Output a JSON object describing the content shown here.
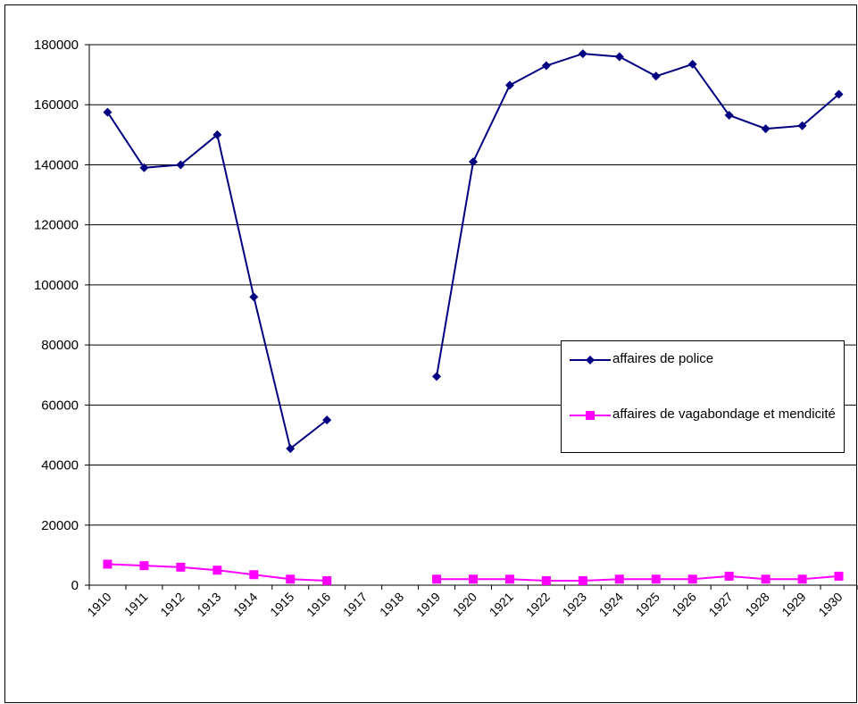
{
  "chart_data": {
    "type": "line",
    "categories": [
      "1910",
      "1911",
      "1912",
      "1913",
      "1914",
      "1915",
      "1916",
      "1917",
      "1918",
      "1919",
      "1920",
      "1921",
      "1922",
      "1923",
      "1924",
      "1925",
      "1926",
      "1927",
      "1928",
      "1929",
      "1930"
    ],
    "series": [
      {
        "name": "affaires de police",
        "color": "#000080",
        "marker": "diamond",
        "values": [
          157500,
          139000,
          140000,
          150000,
          96000,
          45500,
          55000,
          null,
          null,
          69500,
          141000,
          166500,
          173000,
          177000,
          176000,
          169500,
          173500,
          156500,
          152000,
          153000,
          163500
        ]
      },
      {
        "name": "affaires de vagabondage et mendicité",
        "color": "#ff00ff",
        "marker": "square",
        "values": [
          7000,
          6500,
          6000,
          5000,
          3500,
          2000,
          1500,
          null,
          null,
          2000,
          2000,
          2000,
          1500,
          1500,
          2000,
          2000,
          2000,
          3000,
          2000,
          2000,
          3000
        ]
      }
    ],
    "ylim": [
      0,
      180000
    ],
    "yticks": [
      0,
      20000,
      40000,
      60000,
      80000,
      100000,
      120000,
      140000,
      160000,
      180000
    ],
    "grid": true,
    "legend": "right"
  }
}
